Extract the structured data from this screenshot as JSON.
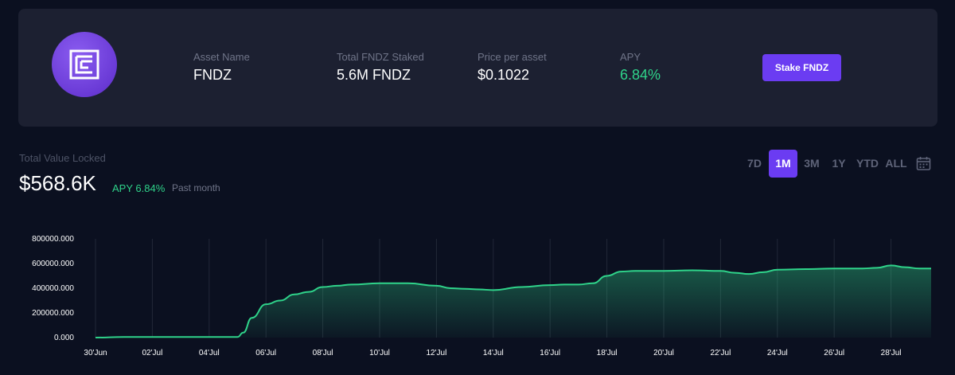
{
  "asset": {
    "fields": [
      {
        "label": "Asset Name",
        "value": "FNDZ"
      },
      {
        "label": "Total FNDZ Staked",
        "value": "5.6M FNDZ"
      },
      {
        "label": "Price per asset",
        "value": "$0.1022"
      },
      {
        "label": "APY",
        "value": "6.84%"
      }
    ],
    "stake_label": "Stake FNDZ",
    "logo_icon": "fndz-logo-icon"
  },
  "tvl": {
    "label": "Total Value Locked",
    "value": "$568.6K",
    "apy": "APY 6.84%",
    "period": "Past month"
  },
  "range": {
    "tabs": [
      "7D",
      "1M",
      "3M",
      "1Y",
      "YTD",
      "ALL"
    ],
    "active": "1M",
    "calendar_icon": "calendar-icon"
  },
  "colors": {
    "accent": "#6b3cf2",
    "line": "#2fd38a",
    "positive": "#2fd38a"
  },
  "chart_data": {
    "type": "area",
    "y_tick_labels": [
      "800000.000",
      "600000.000",
      "400000.000",
      "200000.000",
      "0.000"
    ],
    "y_ticks": [
      800000,
      600000,
      400000,
      200000,
      0
    ],
    "ylim": [
      0,
      800000
    ],
    "x_tick_labels": [
      "30'Jun",
      "02'Jul",
      "04'Jul",
      "06'Jul",
      "08'Jul",
      "10'Jul",
      "12'Jul",
      "14'Jul",
      "16'Jul",
      "18'Jul",
      "20'Jul",
      "22'Jul",
      "24'Jul",
      "26'Jul",
      "28'Jul"
    ],
    "grid": "vertical",
    "series": [
      {
        "x": [
          0,
          1,
          2,
          3,
          4,
          5,
          5.2,
          5.5,
          6,
          6.5,
          7,
          7.5,
          8,
          8.5,
          9,
          10,
          11,
          12,
          12.5,
          13,
          13.5,
          14,
          15,
          16,
          16.5,
          17,
          17.5,
          18,
          18.5,
          19,
          19.5,
          20,
          21,
          22,
          22.5,
          23,
          23.5,
          24,
          25,
          26,
          26.5,
          27,
          27.5,
          28,
          28.5,
          29,
          29.5
        ],
        "values": [
          0,
          5000,
          5000,
          5000,
          5000,
          5000,
          40000,
          160000,
          270000,
          300000,
          350000,
          370000,
          410000,
          420000,
          430000,
          440000,
          440000,
          420000,
          400000,
          395000,
          390000,
          385000,
          410000,
          425000,
          430000,
          430000,
          440000,
          500000,
          535000,
          540000,
          540000,
          540000,
          545000,
          540000,
          525000,
          515000,
          530000,
          550000,
          555000,
          560000,
          560000,
          560000,
          565000,
          585000,
          570000,
          560000,
          560000
        ]
      }
    ]
  }
}
